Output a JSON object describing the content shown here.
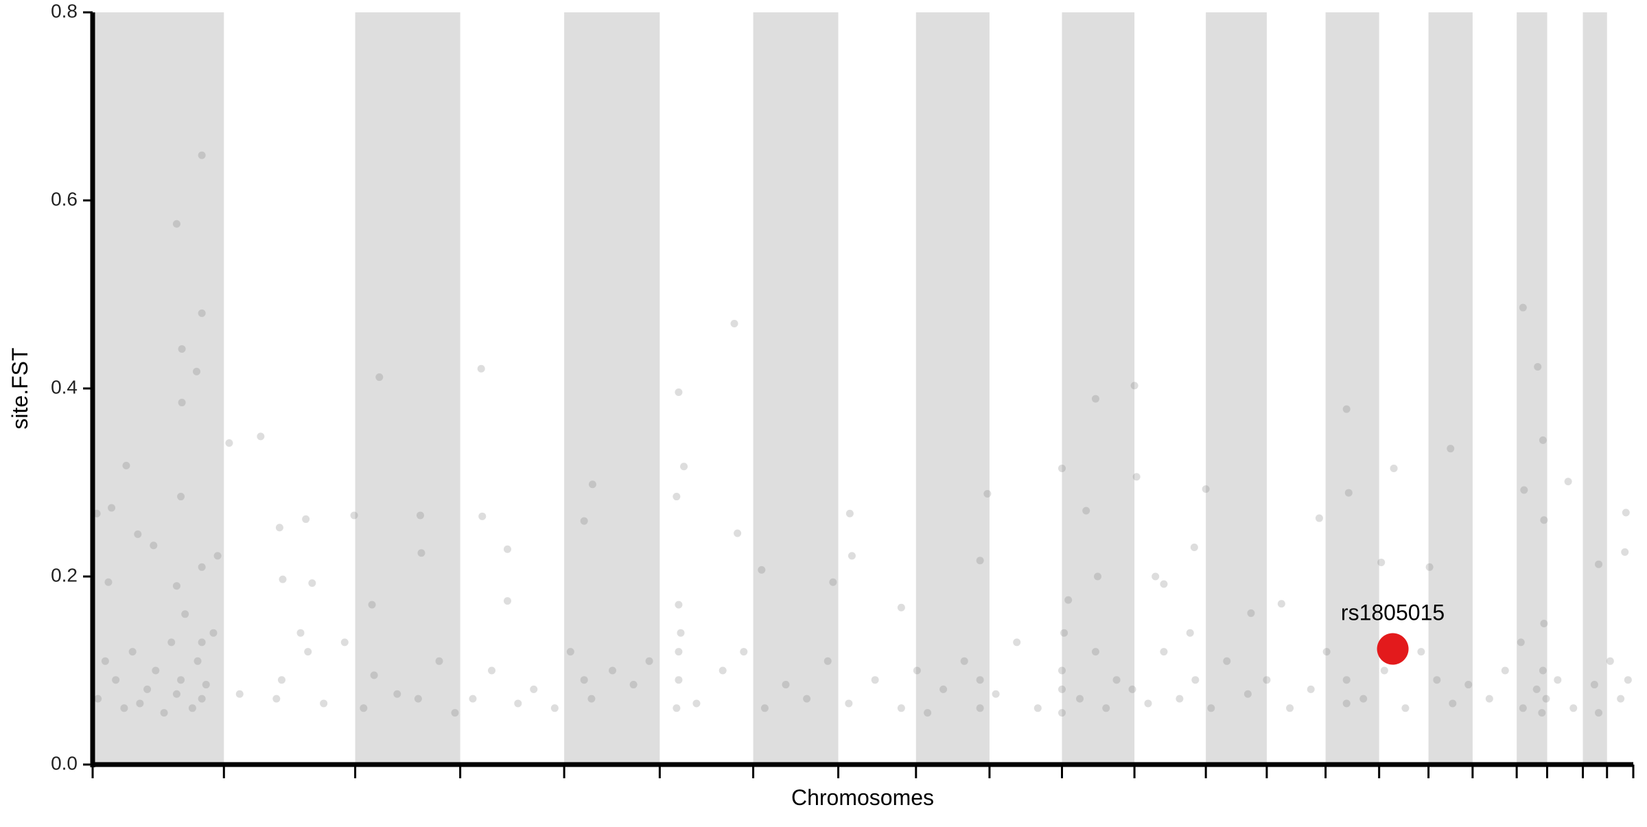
{
  "chart_data": {
    "type": "scatter",
    "ylabel": "site.FST",
    "xlabel": "Chromosomes",
    "xlim": [
      0,
      1467
    ],
    "ylim": [
      0,
      0.8
    ],
    "yticks": [
      {
        "value": 0,
        "label": "0.0"
      },
      0.2,
      0.4,
      0.6,
      0.8
    ],
    "xticks": [
      0,
      125,
      250,
      350,
      449,
      540,
      629,
      710,
      784,
      854,
      923,
      992,
      1060,
      1118,
      1174,
      1225,
      1272,
      1314,
      1356,
      1385,
      1419,
      1442,
      1467
    ],
    "alternate_shading": true,
    "shade_color": "#dedede",
    "series": [
      {
        "color": "#777777",
        "opacity": 0.25,
        "x": [
          80,
          104,
          104,
          85,
          99,
          85,
          32,
          160,
          130,
          273,
          370,
          611,
          558,
          955,
          992,
          1362,
          1376,
          1194,
          84,
          178,
          476,
          563,
          852,
          923,
          1239,
          1293,
          1381,
          1405,
          1460,
          4,
          18,
          43,
          58,
          119,
          203,
          249,
          312,
          371,
          468,
          556,
          614,
          721,
          946,
          994,
          1060,
          1168,
          1196,
          1363,
          1382,
          15,
          80,
          104,
          181,
          209,
          313,
          395,
          637,
          705,
          723,
          957,
          1012,
          1020,
          1049,
          1103,
          1132,
          1227,
          1273,
          1459,
          1434,
          845,
          770,
          266,
          395,
          558,
          929,
          5,
          12,
          22,
          30,
          38,
          45,
          52,
          60,
          68,
          75,
          80,
          84,
          88,
          95,
          100,
          104,
          104,
          108,
          115,
          140,
          175,
          180,
          198,
          205,
          220,
          240,
          258,
          268,
          290,
          310,
          330,
          345,
          362,
          380,
          405,
          420,
          440,
          455,
          468,
          475,
          495,
          515,
          530,
          556,
          558,
          558,
          560,
          575,
          600,
          620,
          640,
          660,
          680,
          700,
          720,
          745,
          770,
          785,
          795,
          810,
          830,
          845,
          845,
          860,
          880,
          900,
          923,
          923,
          923,
          925,
          940,
          955,
          965,
          975,
          990,
          1005,
          1020,
          1035,
          1045,
          1050,
          1065,
          1080,
          1100,
          1118,
          1140,
          1160,
          1175,
          1194,
          1194,
          1210,
          1230,
          1250,
          1265,
          1280,
          1295,
          1310,
          1330,
          1345,
          1360,
          1362,
          1375,
          1380,
          1381,
          1382,
          1384,
          1395,
          1410,
          1430,
          1434,
          1445,
          1455,
          1462
        ],
        "values": [
          0.575,
          0.648,
          0.48,
          0.442,
          0.418,
          0.385,
          0.318,
          0.349,
          0.342,
          0.412,
          0.421,
          0.469,
          0.396,
          0.389,
          0.403,
          0.486,
          0.423,
          0.378,
          0.285,
          0.252,
          0.298,
          0.317,
          0.288,
          0.315,
          0.315,
          0.336,
          0.345,
          0.301,
          0.268,
          0.267,
          0.273,
          0.245,
          0.233,
          0.222,
          0.261,
          0.265,
          0.265,
          0.264,
          0.259,
          0.285,
          0.246,
          0.267,
          0.27,
          0.306,
          0.293,
          0.262,
          0.289,
          0.292,
          0.26,
          0.194,
          0.19,
          0.21,
          0.197,
          0.193,
          0.225,
          0.229,
          0.207,
          0.194,
          0.222,
          0.2,
          0.2,
          0.192,
          0.231,
          0.161,
          0.171,
          0.215,
          0.21,
          0.226,
          0.213,
          0.217,
          0.167,
          0.17,
          0.174,
          0.17,
          0.175,
          0.07,
          0.11,
          0.09,
          0.06,
          0.12,
          0.065,
          0.08,
          0.1,
          0.055,
          0.13,
          0.075,
          0.09,
          0.16,
          0.06,
          0.11,
          0.07,
          0.13,
          0.085,
          0.14,
          0.075,
          0.07,
          0.09,
          0.14,
          0.12,
          0.065,
          0.13,
          0.06,
          0.095,
          0.075,
          0.07,
          0.11,
          0.055,
          0.07,
          0.1,
          0.065,
          0.08,
          0.06,
          0.12,
          0.09,
          0.07,
          0.1,
          0.085,
          0.11,
          0.06,
          0.09,
          0.12,
          0.14,
          0.065,
          0.1,
          0.12,
          0.06,
          0.085,
          0.07,
          0.11,
          0.065,
          0.09,
          0.06,
          0.1,
          0.055,
          0.08,
          0.11,
          0.06,
          0.09,
          0.075,
          0.13,
          0.06,
          0.055,
          0.08,
          0.1,
          0.14,
          0.07,
          0.12,
          0.06,
          0.09,
          0.08,
          0.065,
          0.12,
          0.07,
          0.14,
          0.09,
          0.06,
          0.11,
          0.075,
          0.09,
          0.06,
          0.08,
          0.12,
          0.065,
          0.09,
          0.07,
          0.1,
          0.06,
          0.12,
          0.09,
          0.065,
          0.085,
          0.07,
          0.1,
          0.13,
          0.06,
          0.08,
          0.055,
          0.1,
          0.15,
          0.07,
          0.09,
          0.06,
          0.085,
          0.055,
          0.11,
          0.07,
          0.09
        ]
      },
      {
        "name": "rs1805015",
        "color": "#e31a1c",
        "opacity": 1,
        "x": [
          1238
        ],
        "values": [
          0.123
        ]
      }
    ]
  }
}
